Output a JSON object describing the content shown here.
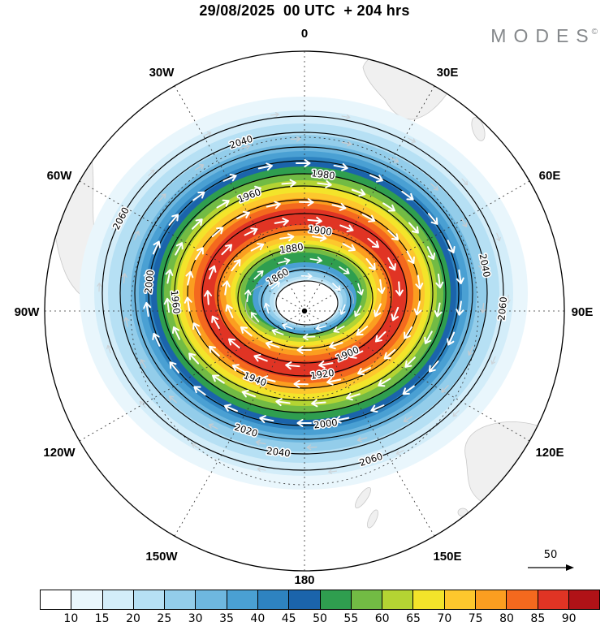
{
  "header": {
    "title": "29/08/2025  00 UTC  + 204 hrs",
    "brand": "MODES",
    "brand_mark": "©"
  },
  "map": {
    "compass_labels": {
      "n0": "0",
      "e30": "30E",
      "e60": "60E",
      "e90": "90E",
      "e120": "120E",
      "e150": "150E",
      "s180": "180",
      "w150": "150W",
      "w120": "120W",
      "w90": "90W",
      "w60": "60W",
      "w30": "30W"
    },
    "contour_labels": {
      "c1860": "1860",
      "c1880": "1880",
      "c1900": "1900",
      "c1920": "1920",
      "c1940": "1940",
      "c1960": "1960",
      "c1980": "1980",
      "c2000": "2000",
      "c2020": "2020",
      "c2040": "2040",
      "c2060": "2060"
    },
    "reference_vector_label": "50"
  },
  "colorbar": {
    "ticks": [
      "10",
      "15",
      "20",
      "25",
      "30",
      "35",
      "40",
      "45",
      "50",
      "55",
      "60",
      "65",
      "70",
      "75",
      "80",
      "85",
      "90"
    ],
    "colors": [
      "#ffffff",
      "#e9f6fc",
      "#d3edf9",
      "#b6e0f4",
      "#93cdea",
      "#6eb7df",
      "#4aa0d3",
      "#2e83c0",
      "#1b64ab",
      "#2f9e4f",
      "#72bb44",
      "#b4d433",
      "#f3e42a",
      "#fdc72d",
      "#fb9e20",
      "#f4691e",
      "#e03424",
      "#b01217"
    ]
  },
  "chart_data": {
    "type": "heatmap",
    "title": "29/08/2025 00 UTC + 204 hrs",
    "valid_date": "29/08/2025",
    "init_time": "00 UTC",
    "lead_time_hrs": 204,
    "projection": "Southern Hemisphere polar stereographic, pole at center, 0 deg longitude at top",
    "meridian_labels": [
      "0",
      "30E",
      "60E",
      "90E",
      "120E",
      "150E",
      "180",
      "150W",
      "120W",
      "90W",
      "60W",
      "30W"
    ],
    "grid": "dashed meridians every 30 degrees and two dashed latitude circles",
    "contour_levels": [
      1860,
      1880,
      1900,
      1920,
      1940,
      1960,
      1980,
      2000,
      2020,
      2040,
      2060
    ],
    "contour_interval": 20,
    "shade_boundaries": [
      10,
      15,
      20,
      25,
      30,
      35,
      40,
      45,
      50,
      55,
      60,
      65,
      70,
      75,
      80,
      85,
      90
    ],
    "shade_colors": [
      "#ffffff",
      "#e9f6fc",
      "#d3edf9",
      "#b6e0f4",
      "#93cdea",
      "#6eb7df",
      "#4aa0d3",
      "#2e83c0",
      "#1b64ab",
      "#2f9e4f",
      "#72bb44",
      "#b4d433",
      "#f3e42a",
      "#fdc72d",
      "#fb9e20",
      "#f4691e",
      "#e03424",
      "#b01217"
    ],
    "pattern": "annular shaded maximum (red band) encircling the pole with white minimum core at center; values decrease outward through orange, yellow, green into blues",
    "flow_direction": "clockwise circumpolar arrows",
    "reference_vector": 50,
    "legend_position": "bottom"
  }
}
